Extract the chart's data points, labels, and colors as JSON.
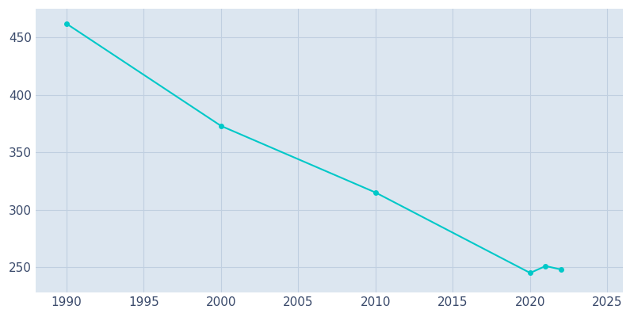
{
  "years": [
    1990,
    2000,
    2010,
    2020,
    2021,
    2022
  ],
  "population": [
    462,
    373,
    315,
    245,
    251,
    248
  ],
  "line_color": "#00c8c8",
  "marker": "o",
  "marker_size": 4,
  "plot_bg_color": "#dce6f0",
  "fig_bg_color": "#ffffff",
  "grid_color": "#c0cfe0",
  "xlim": [
    1988,
    2026
  ],
  "ylim": [
    228,
    475
  ],
  "xticks": [
    1990,
    1995,
    2000,
    2005,
    2010,
    2015,
    2020,
    2025
  ],
  "yticks": [
    250,
    300,
    350,
    400,
    450
  ],
  "tick_fontsize": 11,
  "tick_color": "#3a4a6b",
  "spine_color": "#dce6f0"
}
